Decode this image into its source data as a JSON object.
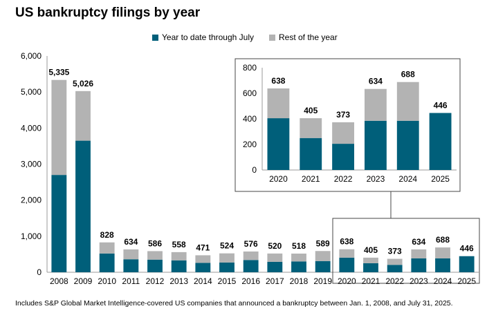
{
  "title": "US bankruptcy filings by year",
  "legend": [
    {
      "label": "Year to date through July",
      "color": "#005f7a"
    },
    {
      "label": "Rest of the year",
      "color": "#b3b3b3"
    }
  ],
  "footnote": "Includes S&P Global Market Intelligence-covered US companies that announced a bankruptcy between Jan. 1, 2008, and July 31, 2025.",
  "chart_data": [
    {
      "type": "bar",
      "stacked": true,
      "categories": [
        "2008",
        "2009",
        "2010",
        "2011",
        "2012",
        "2013",
        "2014",
        "2015",
        "2016",
        "2017",
        "2018",
        "2019",
        "2020",
        "2021",
        "2022",
        "2023",
        "2024",
        "2025"
      ],
      "series": [
        {
          "name": "Year to date through July",
          "color": "#005f7a",
          "values": [
            2700,
            3650,
            520,
            360,
            350,
            330,
            260,
            270,
            340,
            290,
            300,
            310,
            405,
            250,
            205,
            385,
            385,
            446
          ]
        },
        {
          "name": "Rest of the year",
          "color": "#b3b3b3",
          "values": [
            2635,
            1376,
            308,
            274,
            236,
            228,
            211,
            254,
            236,
            230,
            218,
            279,
            233,
            155,
            168,
            249,
            303,
            0
          ]
        }
      ],
      "totals": [
        5335,
        5026,
        828,
        634,
        586,
        558,
        471,
        524,
        576,
        520,
        518,
        589,
        638,
        405,
        373,
        634,
        688,
        446
      ],
      "total_labels": [
        "5,335",
        "5,026",
        "828",
        "634",
        "586",
        "558",
        "471",
        "524",
        "576",
        "520",
        "518",
        "589",
        "638",
        "405",
        "373",
        "634",
        "688",
        "446"
      ],
      "ylim": [
        0,
        6000
      ],
      "yticks": [
        0,
        1000,
        2000,
        3000,
        4000,
        5000,
        6000
      ],
      "ytick_labels": [
        "0",
        "1,000",
        "2,000",
        "3,000",
        "4,000",
        "5,000",
        "6,000"
      ],
      "grid": false
    },
    {
      "type": "bar",
      "stacked": true,
      "inset": true,
      "categories": [
        "2020",
        "2021",
        "2022",
        "2023",
        "2024",
        "2025"
      ],
      "series": [
        {
          "name": "Year to date through July",
          "color": "#005f7a",
          "values": [
            405,
            250,
            205,
            385,
            385,
            446
          ]
        },
        {
          "name": "Rest of the year",
          "color": "#b3b3b3",
          "values": [
            233,
            155,
            168,
            249,
            303,
            0
          ]
        }
      ],
      "totals": [
        638,
        405,
        373,
        634,
        688,
        446
      ],
      "total_labels": [
        "638",
        "405",
        "373",
        "634",
        "688",
        "446"
      ],
      "ylim": [
        0,
        800
      ],
      "yticks": [
        0,
        200,
        400,
        600,
        800
      ],
      "ytick_labels": [
        "0",
        "200",
        "400",
        "600",
        "800"
      ],
      "grid": false
    }
  ]
}
